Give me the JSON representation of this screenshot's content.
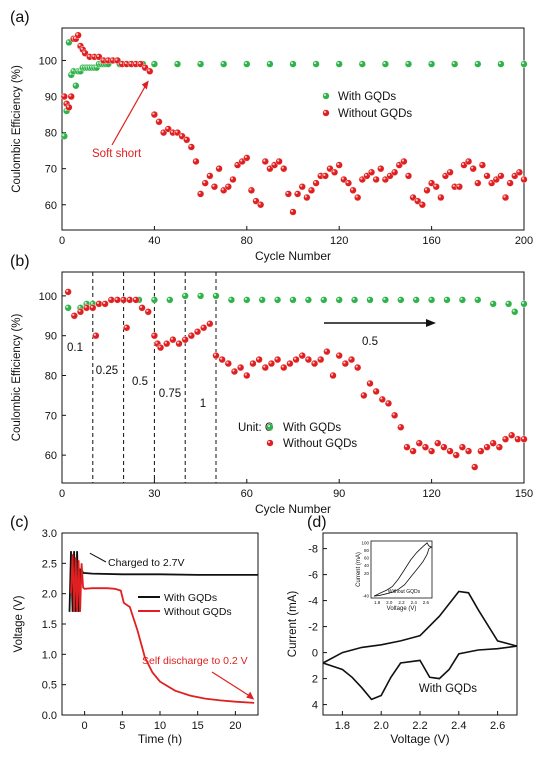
{
  "chart_data": [
    {
      "panel_label": "(a)",
      "type": "scatter",
      "xlabel": "Cycle Number",
      "ylabel": "Coulombic Efficiency (%)",
      "xlim": [
        0,
        200
      ],
      "ylim": [
        53,
        109
      ],
      "xticks": [
        0,
        40,
        80,
        120,
        160,
        200
      ],
      "yticks": [
        60,
        70,
        80,
        90,
        100
      ],
      "legend_position": "center-right",
      "series": [
        {
          "name": "With GQDs",
          "color": "#2fb24a",
          "x": [
            1,
            2,
            3,
            4,
            5,
            6,
            7,
            8,
            9,
            10,
            11,
            12,
            13,
            14,
            15,
            16,
            17,
            18,
            19,
            20,
            25,
            30,
            35,
            40,
            50,
            60,
            70,
            80,
            90,
            100,
            110,
            120,
            130,
            140,
            150,
            160,
            170,
            180,
            190,
            200
          ],
          "y": [
            79,
            86,
            105,
            96,
            97,
            93,
            97,
            97,
            98,
            98,
            98,
            98,
            98,
            98,
            98,
            99,
            99,
            99,
            99,
            99,
            99,
            99,
            99,
            99,
            99,
            99,
            99,
            99,
            99,
            99,
            99,
            99,
            99,
            99,
            99,
            99,
            99,
            99,
            99,
            99
          ]
        },
        {
          "name": "Without GQDs",
          "color": "#e02020",
          "x": [
            1,
            2,
            3,
            4,
            5,
            6,
            7,
            8,
            9,
            10,
            12,
            14,
            16,
            18,
            20,
            22,
            24,
            26,
            28,
            30,
            32,
            34,
            36,
            38,
            40,
            42,
            44,
            46,
            48,
            50,
            52,
            54,
            56,
            58,
            60,
            62,
            64,
            66,
            68,
            70,
            72,
            74,
            76,
            78,
            80,
            82,
            84,
            86,
            88,
            90,
            92,
            94,
            96,
            98,
            100,
            102,
            104,
            106,
            108,
            110,
            112,
            114,
            116,
            118,
            120,
            122,
            124,
            126,
            128,
            130,
            132,
            134,
            136,
            138,
            140,
            142,
            144,
            146,
            148,
            150,
            152,
            154,
            156,
            158,
            160,
            162,
            164,
            166,
            168,
            170,
            172,
            174,
            176,
            178,
            180,
            182,
            184,
            186,
            188,
            190,
            192,
            194,
            196,
            198,
            200
          ],
          "y": [
            90,
            88,
            87,
            90,
            106,
            106,
            107,
            104,
            103,
            102,
            101,
            101,
            101,
            100,
            100,
            100,
            100,
            99,
            99,
            99,
            99,
            99,
            98,
            97,
            85,
            83,
            80,
            81,
            80,
            80,
            79,
            78,
            76,
            72,
            63,
            66,
            68,
            65,
            70,
            64,
            65,
            67,
            71,
            72,
            73,
            64,
            61,
            60,
            72,
            70,
            71,
            72,
            70,
            63,
            58,
            63,
            65,
            62,
            64,
            66,
            68,
            68,
            70,
            69,
            71,
            67,
            66,
            64,
            62,
            67,
            68,
            69,
            67,
            70,
            67,
            68,
            69,
            71,
            72,
            68,
            62,
            61,
            60,
            64,
            66,
            65,
            62,
            68,
            69,
            65,
            65,
            71,
            72,
            70,
            66,
            71,
            68,
            66,
            67,
            68,
            62,
            66,
            68,
            69,
            67
          ]
        }
      ],
      "annotations": [
        {
          "text": "Soft short",
          "color": "#e02020",
          "arrow_to": [
            38,
            95
          ]
        }
      ]
    },
    {
      "panel_label": "(b)",
      "type": "scatter",
      "xlabel": "Cycle Number",
      "ylabel": "Coulombic Efficiency (%)",
      "xlim": [
        0,
        150
      ],
      "ylim": [
        53,
        106
      ],
      "xticks": [
        0,
        30,
        60,
        90,
        120,
        150
      ],
      "yticks": [
        60,
        70,
        80,
        90,
        100
      ],
      "legend_position": "bottom-center",
      "rate_boundaries": [
        10,
        20,
        30,
        40,
        50
      ],
      "rate_labels": [
        "0.1",
        "0.25",
        "0.5",
        "0.75",
        "1",
        "0.5"
      ],
      "unit_label": "Unit: C",
      "series": [
        {
          "name": "With GQDs",
          "color": "#2fb24a",
          "x": [
            2,
            4,
            6,
            8,
            10,
            12,
            14,
            16,
            18,
            20,
            25,
            30,
            35,
            40,
            45,
            50,
            55,
            60,
            65,
            70,
            75,
            80,
            85,
            90,
            95,
            100,
            105,
            110,
            115,
            120,
            125,
            130,
            135,
            140,
            145,
            147,
            150
          ],
          "y": [
            97,
            95,
            97,
            98,
            98,
            98,
            98,
            99,
            99,
            99,
            99,
            99,
            99,
            100,
            100,
            100,
            99,
            99,
            99,
            99,
            99,
            99,
            99,
            99,
            99,
            99,
            99,
            99,
            99,
            99,
            99,
            99,
            99,
            98,
            98,
            96,
            98
          ]
        },
        {
          "name": "Without GQDs",
          "color": "#e02020",
          "x": [
            2,
            4,
            6,
            8,
            10,
            11,
            12,
            14,
            16,
            18,
            20,
            21,
            22,
            24,
            26,
            28,
            30,
            31,
            32,
            34,
            36,
            38,
            40,
            42,
            44,
            46,
            48,
            50,
            52,
            54,
            56,
            58,
            60,
            62,
            64,
            66,
            68,
            70,
            72,
            74,
            76,
            78,
            80,
            82,
            84,
            86,
            88,
            90,
            92,
            94,
            96,
            98,
            100,
            102,
            104,
            106,
            108,
            110,
            112,
            114,
            116,
            118,
            120,
            122,
            124,
            126,
            128,
            130,
            132,
            134,
            136,
            138,
            140,
            142,
            144,
            146,
            148,
            150
          ],
          "y": [
            101,
            95,
            96,
            97,
            97,
            90,
            98,
            98,
            99,
            99,
            99,
            92,
            99,
            99,
            97,
            96,
            90,
            88,
            87,
            88,
            89,
            88,
            89,
            90,
            91,
            92,
            93,
            85,
            84,
            83,
            81,
            82,
            80,
            83,
            84,
            82,
            83,
            84,
            82,
            83,
            84,
            85,
            84,
            83,
            84,
            86,
            80,
            85,
            83,
            84,
            82,
            75,
            78,
            76,
            74,
            73,
            70,
            67,
            62,
            61,
            63,
            62,
            61,
            63,
            62,
            61,
            60,
            62,
            61,
            57,
            61,
            62,
            63,
            62,
            64,
            65,
            64,
            64
          ]
        }
      ]
    },
    {
      "panel_label": "(c)",
      "type": "line",
      "xlabel": "Time (h)",
      "ylabel": "Voltage (V)",
      "xlim": [
        -3,
        23
      ],
      "ylim": [
        0,
        3.0
      ],
      "xticks": [
        0,
        5,
        10,
        15,
        20
      ],
      "yticks": [
        0.0,
        0.5,
        1.0,
        1.5,
        2.0,
        2.5,
        3.0
      ],
      "legend_position": "center-right",
      "series": [
        {
          "name": "With GQDs",
          "color": "#111111",
          "x": [
            -2.0,
            -1.8,
            -1.6,
            -1.4,
            -1.2,
            -1.0,
            -0.8,
            -0.6,
            -0.4,
            -0.2,
            0.0,
            1,
            5,
            10,
            15,
            20,
            23
          ],
          "y": [
            1.7,
            2.7,
            1.7,
            2.7,
            1.7,
            2.7,
            1.7,
            2.4,
            2.4,
            2.34,
            2.34,
            2.33,
            2.32,
            2.32,
            2.31,
            2.31,
            2.31
          ]
        },
        {
          "name": "Without GQDs",
          "color": "#e02020",
          "x": [
            -1.8,
            -1.6,
            -1.4,
            -1.2,
            -1.0,
            -0.8,
            -0.6,
            -0.4,
            -0.2,
            0.0,
            1,
            2,
            3,
            4,
            4.8,
            5.2,
            6,
            7,
            8,
            9,
            10,
            12,
            14,
            16,
            18,
            20,
            22.5
          ],
          "y": [
            2.0,
            2.65,
            1.7,
            2.6,
            1.7,
            2.55,
            1.7,
            2.5,
            2.1,
            2.08,
            2.09,
            2.09,
            2.09,
            2.08,
            2.05,
            1.85,
            1.78,
            1.4,
            0.95,
            0.7,
            0.55,
            0.4,
            0.32,
            0.27,
            0.24,
            0.22,
            0.2
          ]
        }
      ],
      "annotations": [
        {
          "text": "Charged to 2.7V",
          "color": "#111111",
          "arrow_to": [
            0.3,
            2.7
          ]
        },
        {
          "text": "Self discharge to 0.2 V",
          "color": "#e02020",
          "arrow_to": [
            22.5,
            0.22
          ]
        }
      ]
    },
    {
      "panel_label": "(d)",
      "type": "line",
      "xlabel": "Voltage (V)",
      "ylabel": "Current (mA)",
      "xlim": [
        1.7,
        2.7
      ],
      "ylim_inverted": [
        4.8,
        -9.2
      ],
      "xticks": [
        1.8,
        2.0,
        2.2,
        2.4,
        2.6
      ],
      "yticks": [
        4,
        2,
        0,
        -2,
        -4,
        -6,
        -8
      ],
      "series": [
        {
          "name": "With GQDs",
          "color": "#111111",
          "x": [
            1.7,
            1.8,
            1.9,
            2.0,
            2.1,
            2.2,
            2.3,
            2.4,
            2.45,
            2.5,
            2.6,
            2.7,
            2.6,
            2.5,
            2.4,
            2.35,
            2.3,
            2.25,
            2.2,
            2.15,
            2.1,
            2.05,
            2.0,
            1.95,
            1.9,
            1.85,
            1.8,
            1.7
          ],
          "y": [
            0.8,
            0.0,
            -0.4,
            -0.6,
            -0.9,
            -1.3,
            -2.8,
            -4.7,
            -4.6,
            -3.3,
            -0.9,
            -0.5,
            -0.3,
            -0.2,
            0.1,
            1.3,
            2.0,
            1.9,
            0.6,
            0.7,
            0.8,
            1.9,
            3.3,
            3.6,
            2.7,
            1.9,
            1.3,
            0.8
          ]
        }
      ],
      "label": "With GQDs",
      "inset": {
        "label": "Without GQDs",
        "xlabel": "Voltage (V)",
        "ylabel": "Current (mA)",
        "xticks": [
          1.8,
          2.0,
          2.2,
          2.4,
          2.6
        ],
        "yticks": [
          -40,
          20,
          40,
          60,
          80,
          100
        ],
        "x": [
          1.75,
          1.85,
          1.95,
          2.05,
          2.15,
          2.25,
          2.35,
          2.45,
          2.55,
          2.62,
          2.65,
          2.7
        ],
        "y_upper": [
          -40,
          -32,
          -25,
          -15,
          5,
          30,
          55,
          75,
          90,
          100,
          92,
          88
        ],
        "y_lower": [
          -40,
          -38,
          -34,
          -30,
          -22,
          -10,
          10,
          30,
          50,
          70,
          85,
          90
        ]
      }
    }
  ]
}
